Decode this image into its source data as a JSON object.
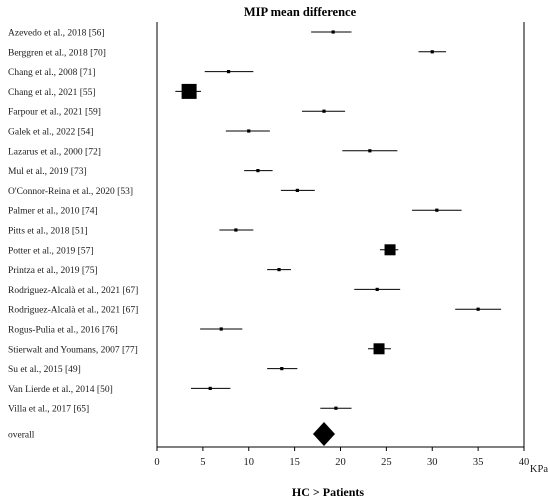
{
  "chart_data": {
    "type": "forest",
    "title": "MIP mean difference",
    "xlabel": "KPa",
    "footer_label": "HC > Patients",
    "xlim": [
      0,
      40
    ],
    "x_ticks": [
      0,
      5,
      10,
      15,
      20,
      25,
      30,
      35,
      40
    ],
    "grid": false,
    "studies": [
      {
        "label": "Azevedo et al., 2018 [56]",
        "estimate": 19.2,
        "ci_low": 16.8,
        "ci_high": 21.2,
        "weight": "small"
      },
      {
        "label": "Berggren et al., 2018 [70]",
        "estimate": 30.0,
        "ci_low": 28.5,
        "ci_high": 31.5,
        "weight": "small"
      },
      {
        "label": "Chang et al., 2008 [71]",
        "estimate": 7.8,
        "ci_low": 5.2,
        "ci_high": 10.5,
        "weight": "small"
      },
      {
        "label": "Chang et al., 2021 [55]",
        "estimate": 3.5,
        "ci_low": 2.0,
        "ci_high": 4.8,
        "weight": "large"
      },
      {
        "label": "Farpour et al., 2021 [59]",
        "estimate": 18.2,
        "ci_low": 15.8,
        "ci_high": 20.5,
        "weight": "small"
      },
      {
        "label": "Galek et al., 2022 [54]",
        "estimate": 10.0,
        "ci_low": 7.5,
        "ci_high": 12.3,
        "weight": "small"
      },
      {
        "label": "Lazarus et al., 2000 [72]",
        "estimate": 23.2,
        "ci_low": 20.2,
        "ci_high": 26.2,
        "weight": "small"
      },
      {
        "label": "Mul et al., 2019 [73]",
        "estimate": 11.0,
        "ci_low": 9.5,
        "ci_high": 12.6,
        "weight": "small"
      },
      {
        "label": "O'Connor-Reina et al., 2020 [53]",
        "estimate": 15.3,
        "ci_low": 13.5,
        "ci_high": 17.2,
        "weight": "small"
      },
      {
        "label": "Palmer et al., 2010 [74]",
        "estimate": 30.5,
        "ci_low": 27.8,
        "ci_high": 33.2,
        "weight": "small"
      },
      {
        "label": "Pitts et al., 2018 [51]",
        "estimate": 8.6,
        "ci_low": 6.8,
        "ci_high": 10.5,
        "weight": "small"
      },
      {
        "label": "Potter et al., 2019 [57]",
        "estimate": 25.4,
        "ci_low": 24.3,
        "ci_high": 26.3,
        "weight": "medium"
      },
      {
        "label": "Printza et al., 2019 [75]",
        "estimate": 13.3,
        "ci_low": 12.0,
        "ci_high": 14.6,
        "weight": "small"
      },
      {
        "label": "Rodriguez-Alcalà et al., 2021 [67]",
        "estimate": 24.0,
        "ci_low": 21.5,
        "ci_high": 26.5,
        "weight": "small"
      },
      {
        "label": "Rodriguez-Alcalà et al., 2021 [67]",
        "estimate": 35.0,
        "ci_low": 32.5,
        "ci_high": 37.5,
        "weight": "small"
      },
      {
        "label": "Rogus-Pulia et al., 2016 [76]",
        "estimate": 7.0,
        "ci_low": 4.7,
        "ci_high": 9.3,
        "weight": "small"
      },
      {
        "label": "Stierwalt and Youmans,  2007 [77]",
        "estimate": 24.2,
        "ci_low": 23.0,
        "ci_high": 25.5,
        "weight": "medium"
      },
      {
        "label": "Su et al., 2015 [49]",
        "estimate": 13.6,
        "ci_low": 12.0,
        "ci_high": 15.3,
        "weight": "small"
      },
      {
        "label": "Van Lierde et al., 2014 [50]",
        "estimate": 5.8,
        "ci_low": 3.7,
        "ci_high": 8.0,
        "weight": "small"
      },
      {
        "label": "Villa et al., 2017 [65]",
        "estimate": 19.5,
        "ci_low": 17.8,
        "ci_high": 21.2,
        "weight": "small"
      }
    ],
    "overall": {
      "label": "overall",
      "estimate": 18.2,
      "ci_low": 17.0,
      "ci_high": 19.4
    }
  }
}
